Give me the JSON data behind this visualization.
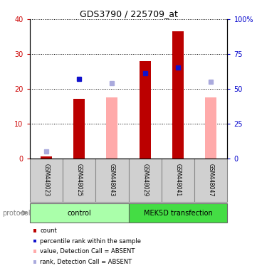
{
  "title": "GDS3790 / 225709_at",
  "samples": [
    "GSM448023",
    "GSM448025",
    "GSM448043",
    "GSM448029",
    "GSM448041",
    "GSM448047"
  ],
  "red_bars": [
    0.5,
    17.2,
    0,
    28.0,
    36.5,
    0
  ],
  "pink_bars": [
    0,
    0,
    17.5,
    0,
    0,
    17.5
  ],
  "blue_squares": [
    0,
    22.8,
    0,
    24.5,
    26.0,
    0
  ],
  "light_blue_squares": [
    2.0,
    0,
    21.5,
    0,
    0,
    22.0
  ],
  "ylim_left": [
    0,
    40
  ],
  "ylim_right": [
    0,
    100
  ],
  "yticks_left": [
    0,
    10,
    20,
    30,
    40
  ],
  "ytick_labels_left": [
    "0",
    "10",
    "20",
    "30",
    "40"
  ],
  "yticks_right": [
    0,
    25,
    50,
    75,
    100
  ],
  "ytick_labels_right": [
    "0",
    "25",
    "50",
    "75",
    "100%"
  ],
  "left_tick_color": "#cc0000",
  "right_tick_color": "#0000cc",
  "bar_width": 0.35,
  "red_bar_color": "#bb0000",
  "pink_bar_color": "#ffaaaa",
  "blue_sq_color": "#1111cc",
  "light_blue_sq_color": "#aaaadd",
  "control_color": "#aaffaa",
  "mek5d_color": "#44dd44",
  "sample_box_color": "#d0d0d0",
  "legend_labels": [
    "count",
    "percentile rank within the sample",
    "value, Detection Call = ABSENT",
    "rank, Detection Call = ABSENT"
  ],
  "legend_colors": [
    "#bb0000",
    "#1111cc",
    "#ffaaaa",
    "#aaaadd"
  ],
  "protocol_label": "protocol"
}
